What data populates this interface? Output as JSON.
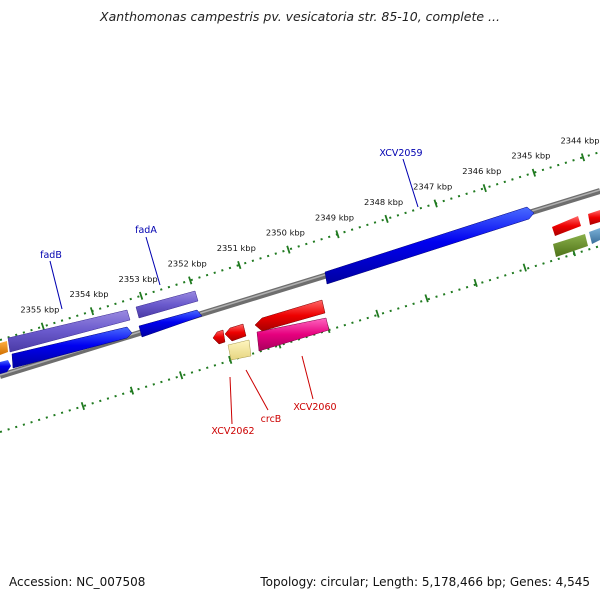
{
  "title": "Xanthomonas campestris pv. vesicatoria str. 85-10, complete ...",
  "footer": {
    "accession": "Accession: NC_007508",
    "summary": "Topology: circular; Length: 5,178,466 bp; Genes: 4,545"
  },
  "colors": {
    "backbone": "#808080",
    "tick": "#207a20",
    "label_top_strand": "#0000b0",
    "label_bottom_strand": "#cc0000"
  },
  "scale": {
    "unit": "kbp",
    "ticks": [
      {
        "value": 2344,
        "label": "2344 kbp"
      },
      {
        "value": 2345,
        "label": "2345 kbp"
      },
      {
        "value": 2346,
        "label": "2346 kbp"
      },
      {
        "value": 2347,
        "label": "2347 kbp"
      },
      {
        "value": 2348,
        "label": "2348 kbp"
      },
      {
        "value": 2349,
        "label": "2349 kbp"
      },
      {
        "value": 2350,
        "label": "2350 kbp"
      },
      {
        "value": 2351,
        "label": "2351 kbp"
      },
      {
        "value": 2352,
        "label": "2352 kbp"
      },
      {
        "value": 2353,
        "label": "2353 kbp"
      },
      {
        "value": 2354,
        "label": "2354 kbp"
      },
      {
        "value": 2355,
        "label": "2355 kbp"
      }
    ]
  },
  "gene_labels": [
    {
      "text": "XCV2059",
      "strand": "top"
    },
    {
      "text": "fadA",
      "strand": "top"
    },
    {
      "text": "fadB",
      "strand": "top"
    },
    {
      "text": "XCV2060",
      "strand": "bottom"
    },
    {
      "text": "crcB",
      "strand": "bottom"
    },
    {
      "text": "XCV2062",
      "strand": "bottom"
    }
  ]
}
